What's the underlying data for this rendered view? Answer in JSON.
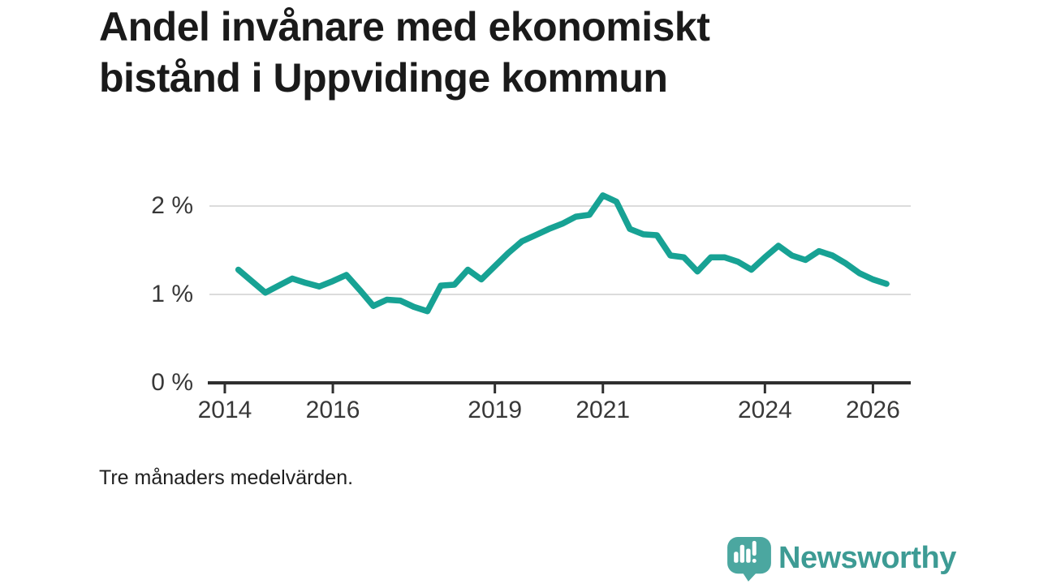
{
  "title": {
    "text": "Andel invånare med ekonomiskt bistånd i Uppvidinge kommun",
    "lines": [
      "Andel invånare med ekonomiskt",
      "bistånd i Uppvidinge kommun"
    ]
  },
  "footnote": "Tre månaders medelvärden.",
  "branding": {
    "name": "Newsworthy",
    "icon": "newsworthy-bar-chart-speech-bubble-icon"
  },
  "colors": {
    "background": "#ffffff",
    "line": "#17a294",
    "grid": "#dcdcdc",
    "axis": "#2f2f2f",
    "tick_label": "#383838",
    "title": "#1a1a1a",
    "footnote": "#1f1f1f",
    "logo_bubble": "#4ba7a0",
    "logo_glyph": "#ffffff",
    "logo_text": "#3d9b94"
  },
  "chart_data": {
    "type": "line",
    "title": "Andel invånare med ekonomiskt bistånd i Uppvidinge kommun",
    "subtitle": "Tre månaders medelvärden.",
    "xlabel": "",
    "ylabel": "",
    "unit": "%",
    "grid": "horizontal",
    "legend": "none",
    "xlim": [
      2013.715,
      2026.7
    ],
    "ylim": [
      0,
      2.35
    ],
    "x_ticks": [
      {
        "value": 2014,
        "label": "2014"
      },
      {
        "value": 2016,
        "label": "2016"
      },
      {
        "value": 2019,
        "label": "2019"
      },
      {
        "value": 2021,
        "label": "2021"
      },
      {
        "value": 2024,
        "label": "2024"
      },
      {
        "value": 2026,
        "label": "2026"
      }
    ],
    "y_ticks": [
      {
        "value": 0,
        "label": "0 %"
      },
      {
        "value": 1,
        "label": "1 %"
      },
      {
        "value": 2,
        "label": "2 %"
      }
    ],
    "series_name": "Andel invånare med ekonomiskt bistånd",
    "x": [
      2014.25,
      2014.5,
      2014.75,
      2015.0,
      2015.25,
      2015.5,
      2015.75,
      2016.0,
      2016.25,
      2016.5,
      2016.75,
      2017.0,
      2017.25,
      2017.5,
      2017.75,
      2018.0,
      2018.25,
      2018.5,
      2018.75,
      2019.0,
      2019.25,
      2019.5,
      2019.75,
      2020.0,
      2020.25,
      2020.5,
      2020.75,
      2021.0,
      2021.25,
      2021.5,
      2021.75,
      2022.0,
      2022.25,
      2022.5,
      2022.75,
      2023.0,
      2023.25,
      2023.5,
      2023.75,
      2024.0,
      2024.25,
      2024.5,
      2024.75,
      2025.0,
      2025.25,
      2025.5,
      2025.75,
      2026.0,
      2026.25
    ],
    "y": [
      1.28,
      1.15,
      1.02,
      1.1,
      1.18,
      1.13,
      1.09,
      1.15,
      1.22,
      1.05,
      0.87,
      0.94,
      0.93,
      0.86,
      0.81,
      1.1,
      1.11,
      1.28,
      1.17,
      1.32,
      1.47,
      1.6,
      1.67,
      1.74,
      1.8,
      1.88,
      1.9,
      2.12,
      2.05,
      1.74,
      1.68,
      1.67,
      1.44,
      1.42,
      1.26,
      1.42,
      1.42,
      1.37,
      1.28,
      1.42,
      1.55,
      1.44,
      1.39,
      1.49,
      1.44,
      1.35,
      1.24,
      1.17,
      1.12
    ]
  }
}
